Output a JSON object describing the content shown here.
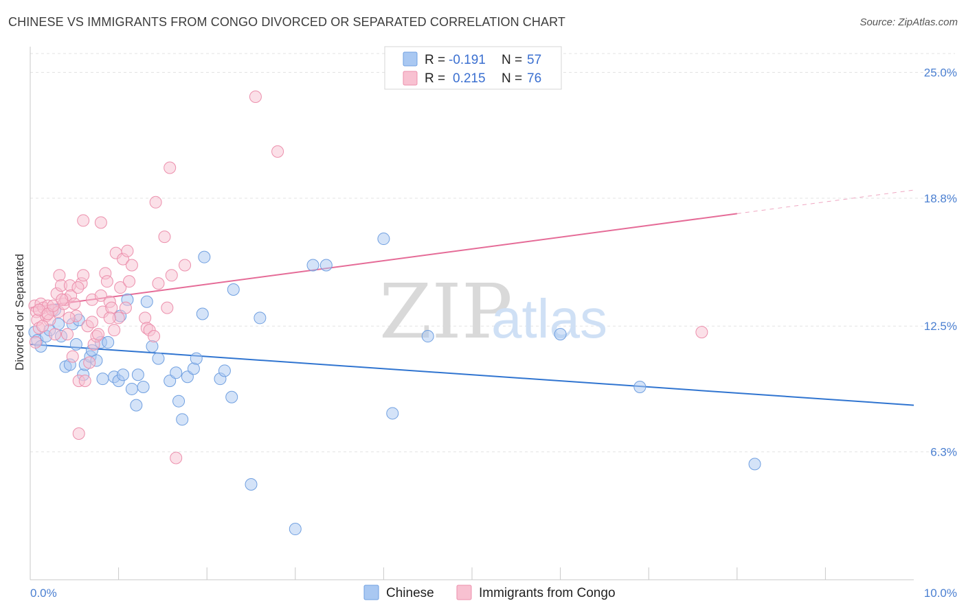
{
  "title": "CHINESE VS IMMIGRANTS FROM CONGO DIVORCED OR SEPARATED CORRELATION CHART",
  "source": "Source: ZipAtlas.com",
  "watermark": {
    "zip": "ZIP",
    "atlas": "atlas"
  },
  "chart_data": {
    "type": "scatter",
    "ylabel": "Divorced or Separated",
    "xlim": [
      0,
      10
    ],
    "ylim": [
      0,
      26.2
    ],
    "x_tick_labels": [
      {
        "v": 0,
        "label": "0.0%"
      },
      {
        "v": 10,
        "label": "10.0%"
      }
    ],
    "x_minor_ticks": [
      1,
      2,
      3,
      4,
      5,
      6,
      7,
      8,
      9
    ],
    "y_ticks": [
      {
        "v": 6.3,
        "label": "6.3%"
      },
      {
        "v": 12.5,
        "label": "12.5%"
      },
      {
        "v": 18.8,
        "label": "18.8%"
      },
      {
        "v": 25.0,
        "label": "25.0%"
      }
    ],
    "grid": true,
    "legend": {
      "position": "top-center",
      "entries": [
        {
          "r_label": "R =",
          "r": "-0.191",
          "n_label": "N =",
          "n": "57",
          "color": "#a9c8f2",
          "edge": "#6f9fe0"
        },
        {
          "r_label": "R =",
          "r": "0.215",
          "n_label": "N =",
          "n": "76",
          "color": "#f8c1d1",
          "edge": "#ec8fac"
        }
      ]
    },
    "series": [
      {
        "name": "Chinese",
        "color": "#a9c8f2",
        "edge": "#6f9fe0",
        "trend_color": "#2f74d0",
        "trend": {
          "x0": 0,
          "y0": 11.6,
          "x1": 10,
          "y1": 8.6,
          "dash_from": null
        },
        "points": [
          [
            0.05,
            12.2
          ],
          [
            0.08,
            11.8
          ],
          [
            0.12,
            11.5
          ],
          [
            0.18,
            12.0
          ],
          [
            0.22,
            12.3
          ],
          [
            0.28,
            13.3
          ],
          [
            0.32,
            12.6
          ],
          [
            0.35,
            12.0
          ],
          [
            0.4,
            10.5
          ],
          [
            0.45,
            10.6
          ],
          [
            0.48,
            12.6
          ],
          [
            0.52,
            11.6
          ],
          [
            0.55,
            12.8
          ],
          [
            0.6,
            10.1
          ],
          [
            0.62,
            10.6
          ],
          [
            0.68,
            11.0
          ],
          [
            0.7,
            11.3
          ],
          [
            0.75,
            10.8
          ],
          [
            0.8,
            11.7
          ],
          [
            0.82,
            9.9
          ],
          [
            0.88,
            11.7
          ],
          [
            0.95,
            10.0
          ],
          [
            1.0,
            9.8
          ],
          [
            1.02,
            13.0
          ],
          [
            1.05,
            10.1
          ],
          [
            1.1,
            13.8
          ],
          [
            1.15,
            9.4
          ],
          [
            1.2,
            8.6
          ],
          [
            1.22,
            10.1
          ],
          [
            1.28,
            9.5
          ],
          [
            1.32,
            13.7
          ],
          [
            1.38,
            11.5
          ],
          [
            1.45,
            10.9
          ],
          [
            1.58,
            9.8
          ],
          [
            1.65,
            10.2
          ],
          [
            1.68,
            8.8
          ],
          [
            1.72,
            7.9
          ],
          [
            1.78,
            10.0
          ],
          [
            1.85,
            10.4
          ],
          [
            1.88,
            10.9
          ],
          [
            1.95,
            13.1
          ],
          [
            1.97,
            15.9
          ],
          [
            2.15,
            9.9
          ],
          [
            2.2,
            10.3
          ],
          [
            2.28,
            9.0
          ],
          [
            2.3,
            14.3
          ],
          [
            2.5,
            4.7
          ],
          [
            2.6,
            12.9
          ],
          [
            3.0,
            2.5
          ],
          [
            3.2,
            15.5
          ],
          [
            3.35,
            15.5
          ],
          [
            4.0,
            16.8
          ],
          [
            4.1,
            8.2
          ],
          [
            4.5,
            12.0
          ],
          [
            6.0,
            12.1
          ],
          [
            6.9,
            9.5
          ],
          [
            8.2,
            5.7
          ]
        ]
      },
      {
        "name": "Immigrants from Congo",
        "color": "#f8c1d1",
        "edge": "#ec8fac",
        "trend_color": "#e56b97",
        "trend": {
          "x0": 0,
          "y0": 13.4,
          "x1": 10,
          "y1": 19.2,
          "dash_from": 8.0
        },
        "points": [
          [
            0.05,
            13.5
          ],
          [
            0.07,
            13.2
          ],
          [
            0.08,
            12.8
          ],
          [
            0.1,
            12.4
          ],
          [
            0.12,
            13.6
          ],
          [
            0.15,
            13.4
          ],
          [
            0.18,
            13.0
          ],
          [
            0.2,
            13.5
          ],
          [
            0.22,
            12.8
          ],
          [
            0.25,
            13.3
          ],
          [
            0.28,
            12.1
          ],
          [
            0.3,
            14.1
          ],
          [
            0.32,
            13.2
          ],
          [
            0.33,
            15.0
          ],
          [
            0.35,
            14.5
          ],
          [
            0.38,
            13.6
          ],
          [
            0.4,
            13.8
          ],
          [
            0.42,
            12.1
          ],
          [
            0.45,
            14.5
          ],
          [
            0.46,
            14.0
          ],
          [
            0.48,
            11.0
          ],
          [
            0.5,
            13.6
          ],
          [
            0.52,
            13.0
          ],
          [
            0.55,
            9.8
          ],
          [
            0.55,
            7.2
          ],
          [
            0.58,
            14.6
          ],
          [
            0.6,
            17.7
          ],
          [
            0.6,
            15.0
          ],
          [
            0.62,
            9.8
          ],
          [
            0.65,
            12.5
          ],
          [
            0.67,
            10.7
          ],
          [
            0.7,
            13.8
          ],
          [
            0.72,
            11.6
          ],
          [
            0.75,
            12.0
          ],
          [
            0.77,
            12.1
          ],
          [
            0.8,
            14.0
          ],
          [
            0.8,
            17.6
          ],
          [
            0.82,
            13.2
          ],
          [
            0.85,
            15.1
          ],
          [
            0.87,
            14.7
          ],
          [
            0.9,
            13.7
          ],
          [
            0.92,
            13.4
          ],
          [
            0.95,
            12.3
          ],
          [
            0.97,
            16.1
          ],
          [
            1.0,
            12.9
          ],
          [
            1.02,
            14.4
          ],
          [
            1.05,
            15.8
          ],
          [
            1.08,
            13.4
          ],
          [
            1.1,
            16.2
          ],
          [
            1.12,
            14.7
          ],
          [
            1.15,
            15.5
          ],
          [
            1.3,
            12.9
          ],
          [
            1.32,
            12.4
          ],
          [
            1.35,
            12.3
          ],
          [
            1.4,
            12.0
          ],
          [
            1.42,
            18.6
          ],
          [
            1.45,
            14.6
          ],
          [
            1.52,
            16.9
          ],
          [
            1.55,
            13.4
          ],
          [
            1.58,
            20.3
          ],
          [
            1.6,
            15.0
          ],
          [
            1.65,
            6.0
          ],
          [
            1.75,
            15.5
          ],
          [
            2.55,
            23.8
          ],
          [
            2.8,
            21.1
          ],
          [
            7.6,
            12.2
          ],
          [
            0.06,
            11.7
          ],
          [
            0.1,
            13.3
          ],
          [
            0.14,
            12.5
          ],
          [
            0.2,
            13.1
          ],
          [
            0.26,
            13.5
          ],
          [
            0.36,
            13.8
          ],
          [
            0.44,
            12.9
          ],
          [
            0.54,
            14.4
          ],
          [
            0.7,
            12.7
          ],
          [
            0.9,
            12.9
          ]
        ]
      }
    ]
  }
}
